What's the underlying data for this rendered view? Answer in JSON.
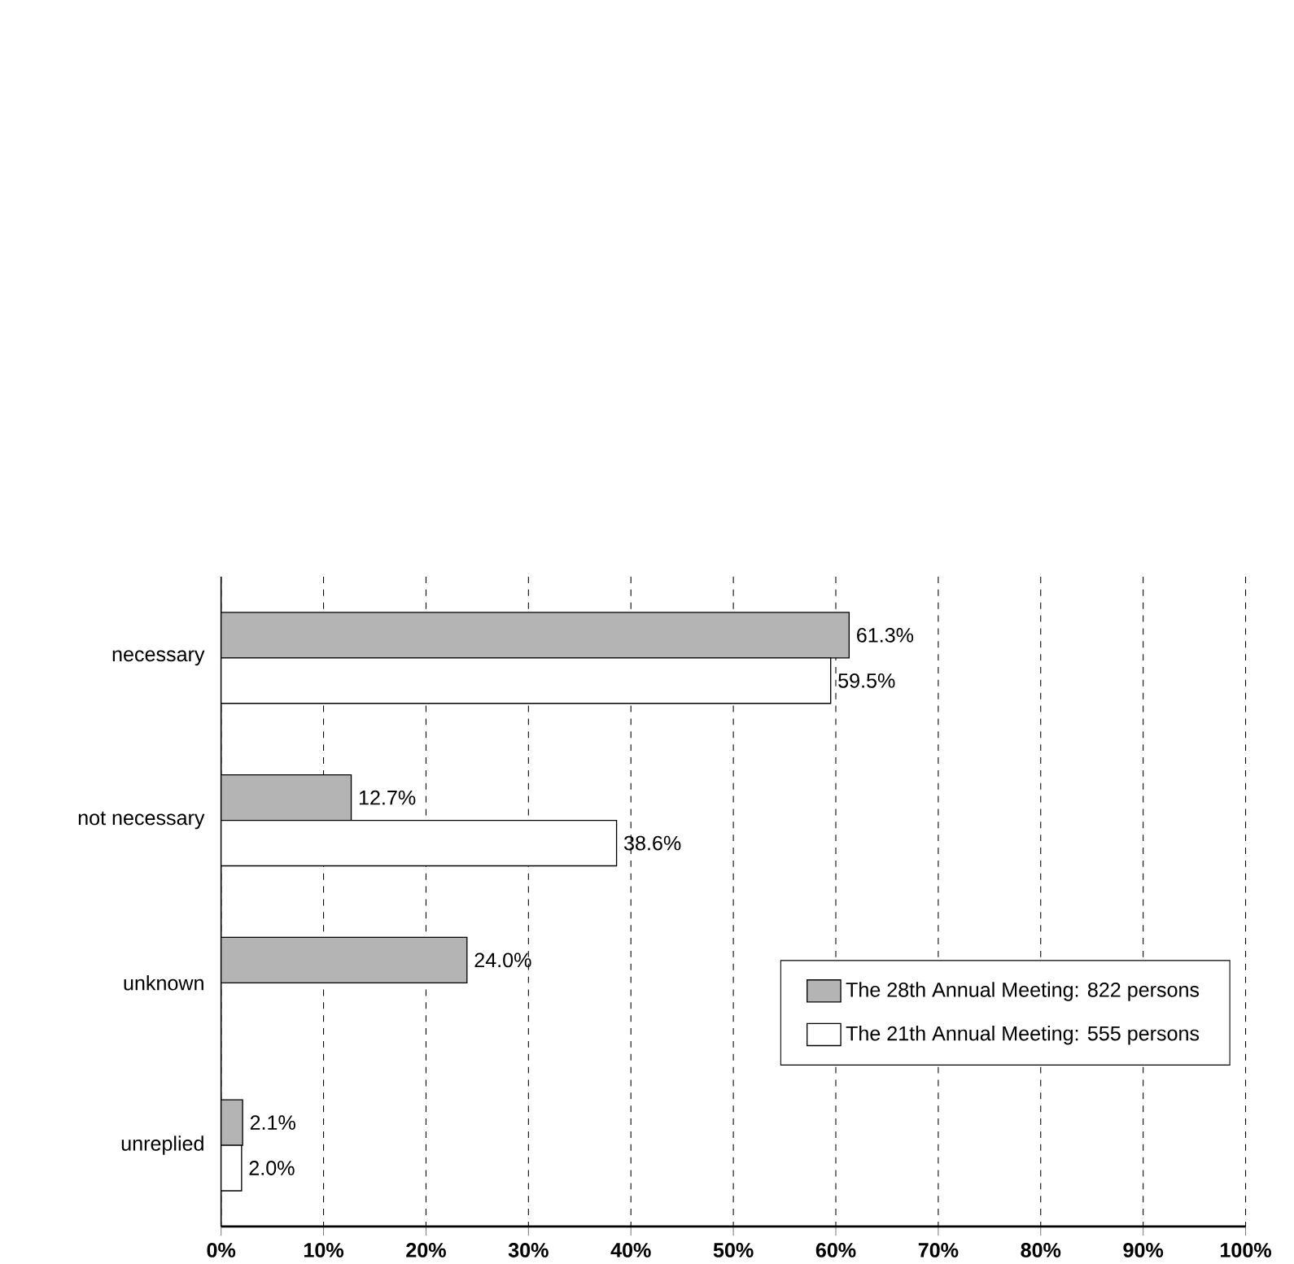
{
  "chart_data": {
    "type": "bar",
    "orientation": "horizontal",
    "categories": [
      "necessary",
      "not necessary",
      "unknown",
      "unreplied"
    ],
    "series": [
      {
        "name": "The 28th Annual Meeting:  822 persons",
        "color": "#b4b4b4",
        "values": [
          61.3,
          12.7,
          24.0,
          2.1
        ],
        "value_labels": [
          "61.3%",
          "12.7%",
          "24.0%",
          "2.1%"
        ]
      },
      {
        "name": "The 21th Annual Meeting:  555 persons",
        "color": "#ffffff",
        "values": [
          59.5,
          38.6,
          null,
          2.0
        ],
        "value_labels": [
          "59.5%",
          "38.6%",
          null,
          "2.0%"
        ]
      }
    ],
    "xlim": [
      0,
      100
    ],
    "xticks": [
      {
        "value": 0,
        "label": "0%"
      },
      {
        "value": 10,
        "label": "10%"
      },
      {
        "value": 20,
        "label": "20%"
      },
      {
        "value": 30,
        "label": "30%"
      },
      {
        "value": 40,
        "label": "40%"
      },
      {
        "value": 50,
        "label": "50%"
      },
      {
        "value": 60,
        "label": "60%"
      },
      {
        "value": 70,
        "label": "70%"
      },
      {
        "value": 80,
        "label": "80%"
      },
      {
        "value": 90,
        "label": "90%"
      },
      {
        "value": 100,
        "label": "100%"
      }
    ],
    "grid": "x",
    "legend": "right"
  }
}
